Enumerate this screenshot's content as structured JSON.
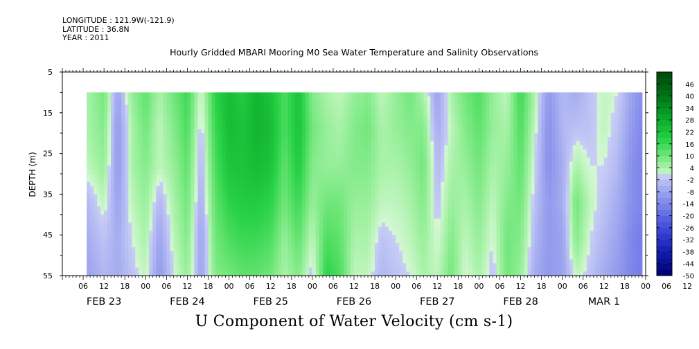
{
  "meta": {
    "longitude": "LONGITUDE : 121.9W(-121.9)",
    "latitude": "LATITUDE : 36.8N",
    "year": "YEAR : 2011"
  },
  "chart_data": {
    "type": "heatmap",
    "title": "Hourly Gridded MBARI Mooring M0 Sea Water Temperature and Salinity Observations",
    "subtitle": "U Component of Water Velocity (cm s-1)",
    "ylabel": "DEPTH (m)",
    "xlabel": "",
    "ylim": [
      55,
      5
    ],
    "y_ticks": [
      5,
      15,
      25,
      35,
      45,
      55
    ],
    "data_depth_range": [
      10,
      55
    ],
    "x_hour_labels": [
      "06",
      "12",
      "18",
      "00",
      "06",
      "12",
      "18",
      "00",
      "06",
      "12",
      "18",
      "00",
      "06",
      "12",
      "18",
      "00",
      "06",
      "12",
      "18",
      "00",
      "06",
      "12",
      "18",
      "00",
      "06",
      "12",
      "18",
      "00",
      "06",
      "12",
      "18",
      "00"
    ],
    "x_date_labels": [
      "FEB 23",
      "FEB 24",
      "FEB 25",
      "FEB 26",
      "FEB 27",
      "FEB 28",
      "MAR  1"
    ],
    "colorbar_labels": [
      46,
      40,
      34,
      28,
      22,
      16,
      10,
      4,
      -2,
      -8,
      -14,
      -20,
      -26,
      -32,
      -38,
      -44,
      -50
    ],
    "colorbar_range": [
      -50,
      52
    ],
    "time_range_hours": [
      7,
      167
    ],
    "series": [
      {
        "hour": 7,
        "values": [
          4,
          4,
          2,
          -4,
          -6,
          -8
        ]
      },
      {
        "hour": 12,
        "values": [
          10,
          8,
          6,
          2,
          -2,
          -4
        ]
      },
      {
        "hour": 16,
        "values": [
          -8,
          -10,
          -10,
          -8,
          -6,
          -6
        ]
      },
      {
        "hour": 20,
        "values": [
          6,
          4,
          4,
          2,
          0,
          -2
        ]
      },
      {
        "hour": 24,
        "values": [
          12,
          10,
          8,
          6,
          4,
          2
        ]
      },
      {
        "hour": 28,
        "values": [
          4,
          2,
          2,
          -4,
          -8,
          -10
        ]
      },
      {
        "hour": 32,
        "values": [
          10,
          8,
          6,
          4,
          2,
          0
        ]
      },
      {
        "hour": 36,
        "values": [
          16,
          14,
          12,
          10,
          8,
          6
        ]
      },
      {
        "hour": 40,
        "values": [
          0,
          -2,
          -4,
          -6,
          -8,
          -8
        ]
      },
      {
        "hour": 44,
        "values": [
          18,
          16,
          14,
          12,
          10,
          8
        ]
      },
      {
        "hour": 48,
        "values": [
          24,
          24,
          22,
          18,
          14,
          10
        ]
      },
      {
        "hour": 52,
        "values": [
          20,
          22,
          22,
          20,
          16,
          12
        ]
      },
      {
        "hour": 56,
        "values": [
          26,
          26,
          24,
          20,
          16,
          12
        ]
      },
      {
        "hour": 60,
        "values": [
          22,
          24,
          22,
          18,
          14,
          10
        ]
      },
      {
        "hour": 64,
        "values": [
          14,
          14,
          12,
          10,
          6,
          4
        ]
      },
      {
        "hour": 68,
        "values": [
          22,
          22,
          20,
          16,
          12,
          8
        ]
      },
      {
        "hour": 72,
        "values": [
          8,
          10,
          8,
          6,
          2,
          -2
        ]
      },
      {
        "hour": 76,
        "values": [
          4,
          6,
          6,
          10,
          14,
          18
        ]
      },
      {
        "hour": 80,
        "values": [
          2,
          4,
          6,
          10,
          12,
          14
        ]
      },
      {
        "hour": 84,
        "values": [
          6,
          8,
          8,
          6,
          4,
          2
        ]
      },
      {
        "hour": 88,
        "values": [
          8,
          10,
          8,
          6,
          4,
          2
        ]
      },
      {
        "hour": 92,
        "values": [
          2,
          4,
          4,
          2,
          -2,
          -4
        ]
      },
      {
        "hour": 96,
        "values": [
          6,
          6,
          4,
          2,
          0,
          -2
        ]
      },
      {
        "hour": 100,
        "values": [
          10,
          8,
          6,
          4,
          2,
          0
        ]
      },
      {
        "hour": 104,
        "values": [
          4,
          8,
          10,
          8,
          6,
          4
        ]
      },
      {
        "hour": 108,
        "values": [
          -8,
          -6,
          -4,
          -2,
          0,
          2
        ]
      },
      {
        "hour": 112,
        "values": [
          4,
          2,
          4,
          6,
          8,
          10
        ]
      },
      {
        "hour": 116,
        "values": [
          10,
          8,
          6,
          4,
          2,
          0
        ]
      },
      {
        "hour": 120,
        "values": [
          14,
          12,
          10,
          8,
          6,
          4
        ]
      },
      {
        "hour": 124,
        "values": [
          6,
          6,
          4,
          2,
          0,
          -2
        ]
      },
      {
        "hour": 128,
        "values": [
          2,
          4,
          6,
          8,
          10,
          10
        ]
      },
      {
        "hour": 132,
        "values": [
          16,
          14,
          12,
          10,
          8,
          6
        ]
      },
      {
        "hour": 136,
        "values": [
          4,
          2,
          0,
          -2,
          -4,
          -6
        ]
      },
      {
        "hour": 140,
        "values": [
          -10,
          -12,
          -12,
          -10,
          -10,
          -10
        ]
      },
      {
        "hour": 144,
        "values": [
          -4,
          -4,
          -6,
          -6,
          -8,
          -8
        ]
      },
      {
        "hour": 148,
        "values": [
          -6,
          -2,
          4,
          10,
          8,
          2
        ]
      },
      {
        "hour": 152,
        "values": [
          -2,
          -2,
          0,
          2,
          0,
          -2
        ]
      },
      {
        "hour": 156,
        "values": [
          2,
          2,
          0,
          -2,
          -4,
          -6
        ]
      },
      {
        "hour": 160,
        "values": [
          0,
          -2,
          -4,
          -6,
          -8,
          -10
        ]
      },
      {
        "hour": 164,
        "values": [
          -8,
          -10,
          -12,
          -12,
          -14,
          -14
        ]
      },
      {
        "hour": 167,
        "values": [
          -12,
          -14,
          -14,
          -14,
          -16,
          -16
        ]
      }
    ],
    "series_depths": [
      10,
      19,
      28,
      37,
      46,
      55
    ]
  }
}
